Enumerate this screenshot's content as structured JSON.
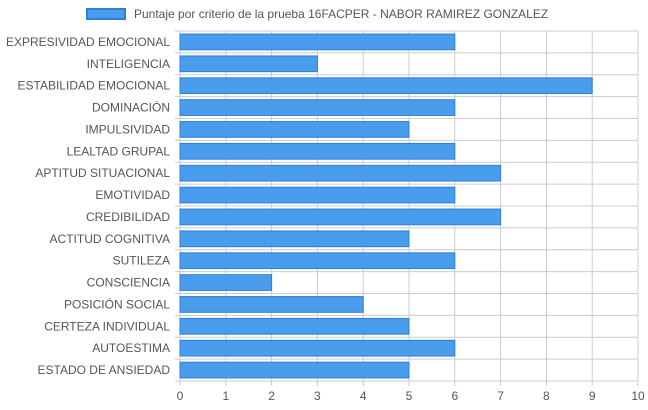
{
  "chart_data": {
    "type": "bar",
    "orientation": "horizontal",
    "categories": [
      "EXPRESIVIDAD EMOCIONAL",
      "INTELIGENCIA",
      "ESTABILIDAD EMOCIONAL",
      "DOMINACIÓN",
      "IMPULSIVIDAD",
      "LEALTAD GRUPAL",
      "APTITUD SITUACIONAL",
      "EMOTIVIDAD",
      "CREDIBILIDAD",
      "ACTITUD COGNITIVA",
      "SUTILEZA",
      "CONSCIENCIA",
      "POSICIÓN SOCIAL",
      "CERTEZA INDIVIDUAL",
      "AUTOESTIMA",
      "ESTADO DE ANSIEDAD"
    ],
    "series": [
      {
        "name": "Puntaje por criterio de la prueba 16FACPER - NABOR RAMIREZ GONZALEZ",
        "values": [
          6,
          3,
          9,
          6,
          5,
          6,
          7,
          6,
          7,
          5,
          6,
          2,
          4,
          5,
          6,
          5
        ],
        "color": "#4a9cec",
        "border_color": "#2f7fd8"
      }
    ],
    "xlim": [
      0,
      10
    ],
    "x_ticks": [
      "0",
      "1",
      "2",
      "3",
      "4",
      "5",
      "6",
      "7",
      "8",
      "9",
      "10"
    ],
    "grid": true,
    "legend_position": "top"
  }
}
